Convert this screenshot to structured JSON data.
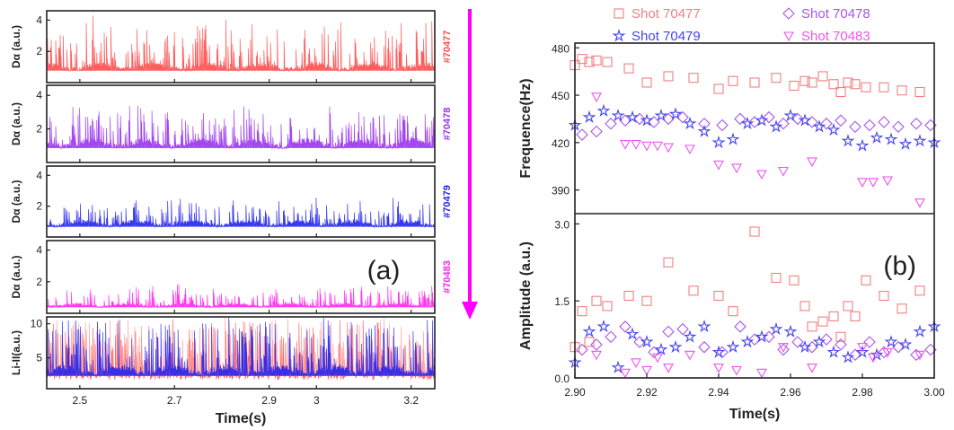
{
  "chart_data": [
    {
      "id": "a",
      "type": "line",
      "panel_label": "(a)",
      "xlabel": "Time(s)",
      "xlim": [
        2.43,
        3.25
      ],
      "xticks": [
        2.5,
        2.7,
        2.9,
        3.0,
        3.2
      ],
      "arrow_color": "#ff00ff",
      "panels": [
        {
          "ylabel": "Dα (a.u.)",
          "ylim": [
            0,
            4.6
          ],
          "yticks": [
            2,
            4
          ],
          "tag": "#70477",
          "color": "#ff4a4a",
          "baseline": 0.8,
          "spike_max": 4.1
        },
        {
          "ylabel": "Dα (a.u.)",
          "ylim": [
            0,
            4.6
          ],
          "yticks": [
            2,
            4
          ],
          "tag": "#70478",
          "color": "#9933ee",
          "baseline": 0.9,
          "spike_max": 3.5
        },
        {
          "ylabel": "Dα (a.u.)",
          "ylim": [
            0,
            4.6
          ],
          "yticks": [
            2,
            4
          ],
          "tag": "#70479",
          "color": "#2222ee",
          "baseline": 0.7,
          "spike_max": 2.6
        },
        {
          "ylabel": "Dα (a.u.)",
          "ylim": [
            0,
            4.6
          ],
          "yticks": [
            2,
            4
          ],
          "tag": "#70483",
          "color": "#ff22ee",
          "baseline": 0.4,
          "spike_max": 1.9
        },
        {
          "ylabel": "Li-II(a.u.)",
          "ylim": [
            0.5,
            11
          ],
          "yticks": [
            5,
            10
          ],
          "tag": "",
          "color": "#2222ee",
          "baseline": 2.5,
          "spike_max": 10
        }
      ]
    },
    {
      "id": "b",
      "type": "scatter",
      "panel_label": "(b)",
      "xlabel": "Time(s)",
      "xlim": [
        2.9,
        3.0
      ],
      "xticks": [
        "2.90",
        "2.92",
        "2.94",
        "2.96",
        "2.98",
        "3.00"
      ],
      "top": {
        "ylabel": "Frequence(Hz)",
        "ylim": [
          375,
          483
        ],
        "yticks": [
          390,
          420,
          450,
          480
        ]
      },
      "bottom": {
        "ylabel": "Amplitude (a.u.)",
        "ylim": [
          0,
          3.2
        ],
        "yticks": [
          "0.0",
          "1.5",
          "3.0"
        ]
      },
      "series": [
        {
          "name": "Shot 70477",
          "color": "#f08080",
          "marker": "square",
          "x": [
            2.9,
            2.902,
            2.904,
            2.906,
            2.909,
            2.915,
            2.92,
            2.926,
            2.933,
            2.94,
            2.944,
            2.95,
            2.956,
            2.961,
            2.964,
            2.966,
            2.969,
            2.972,
            2.974,
            2.976,
            2.978,
            2.981,
            2.986,
            2.991,
            2.996
          ],
          "freq": [
            469,
            473,
            471,
            472,
            471,
            467,
            458,
            462,
            461,
            454,
            459,
            458,
            461,
            456,
            459,
            458,
            462,
            457,
            452,
            458,
            457,
            455,
            455,
            453,
            452
          ],
          "amp": [
            0.6,
            1.3,
            0.7,
            1.5,
            1.4,
            1.6,
            1.5,
            2.25,
            1.7,
            1.6,
            1.3,
            2.85,
            1.95,
            1.9,
            1.4,
            1.0,
            1.1,
            1.2,
            0.8,
            1.4,
            1.2,
            1.9,
            1.6,
            1.35,
            1.7
          ]
        },
        {
          "name": "Shot 70478",
          "color": "#aa55ee",
          "marker": "diamond",
          "x": [
            2.902,
            2.906,
            2.91,
            2.914,
            2.918,
            2.922,
            2.926,
            2.93,
            2.936,
            2.941,
            2.946,
            2.95,
            2.954,
            2.958,
            2.962,
            2.966,
            2.97,
            2.974,
            2.978,
            2.982,
            2.986,
            2.99,
            2.995,
            2.999
          ],
          "freq": [
            425,
            427,
            432,
            434,
            435,
            433,
            435,
            436,
            432,
            431,
            435,
            433,
            436,
            432,
            435,
            433,
            432,
            434,
            430,
            431,
            433,
            430,
            432,
            431
          ],
          "amp": [
            0.55,
            0.65,
            0.8,
            1.0,
            0.7,
            0.5,
            0.9,
            0.95,
            0.6,
            0.5,
            1.0,
            0.75,
            0.8,
            0.55,
            0.7,
            0.6,
            0.75,
            0.65,
            0.45,
            0.7,
            0.5,
            0.6,
            0.45,
            0.55
          ]
        },
        {
          "name": "Shot 70479",
          "color": "#4444ee",
          "marker": "star",
          "x": [
            2.9,
            2.904,
            2.908,
            2.912,
            2.916,
            2.92,
            2.924,
            2.928,
            2.932,
            2.936,
            2.94,
            2.944,
            2.948,
            2.952,
            2.956,
            2.96,
            2.964,
            2.968,
            2.972,
            2.976,
            2.98,
            2.984,
            2.988,
            2.992,
            2.996,
            3.0
          ],
          "freq": [
            431,
            436,
            440,
            437,
            436,
            434,
            437,
            438,
            432,
            427,
            420,
            422,
            432,
            434,
            430,
            437,
            434,
            430,
            428,
            421,
            418,
            423,
            422,
            419,
            421,
            420
          ],
          "amp": [
            0.3,
            0.9,
            1.0,
            0.2,
            0.85,
            0.7,
            0.55,
            0.6,
            0.8,
            1.0,
            0.5,
            0.6,
            0.7,
            0.8,
            0.95,
            0.9,
            0.6,
            0.7,
            0.5,
            0.4,
            0.5,
            0.45,
            0.7,
            0.65,
            0.9,
            1.0
          ]
        },
        {
          "name": "Shot 70483",
          "color": "#ee55ee",
          "marker": "triangle-down",
          "x": [
            2.906,
            2.914,
            2.917,
            2.92,
            2.923,
            2.926,
            2.932,
            2.94,
            2.945,
            2.952,
            2.958,
            2.966,
            2.98,
            2.983,
            2.987,
            2.996
          ],
          "freq": [
            449,
            419,
            419,
            418,
            418,
            417,
            416,
            406,
            404,
            400,
            402,
            408,
            395,
            395,
            396,
            382
          ],
          "amp": [
            0.45,
            0.1,
            0.3,
            0.15,
            0.4,
            0.2,
            0.45,
            0.2,
            0.15,
            0.1,
            0.6,
            0.2,
            0.6,
            0.4,
            0.5,
            0.45
          ]
        }
      ]
    }
  ]
}
